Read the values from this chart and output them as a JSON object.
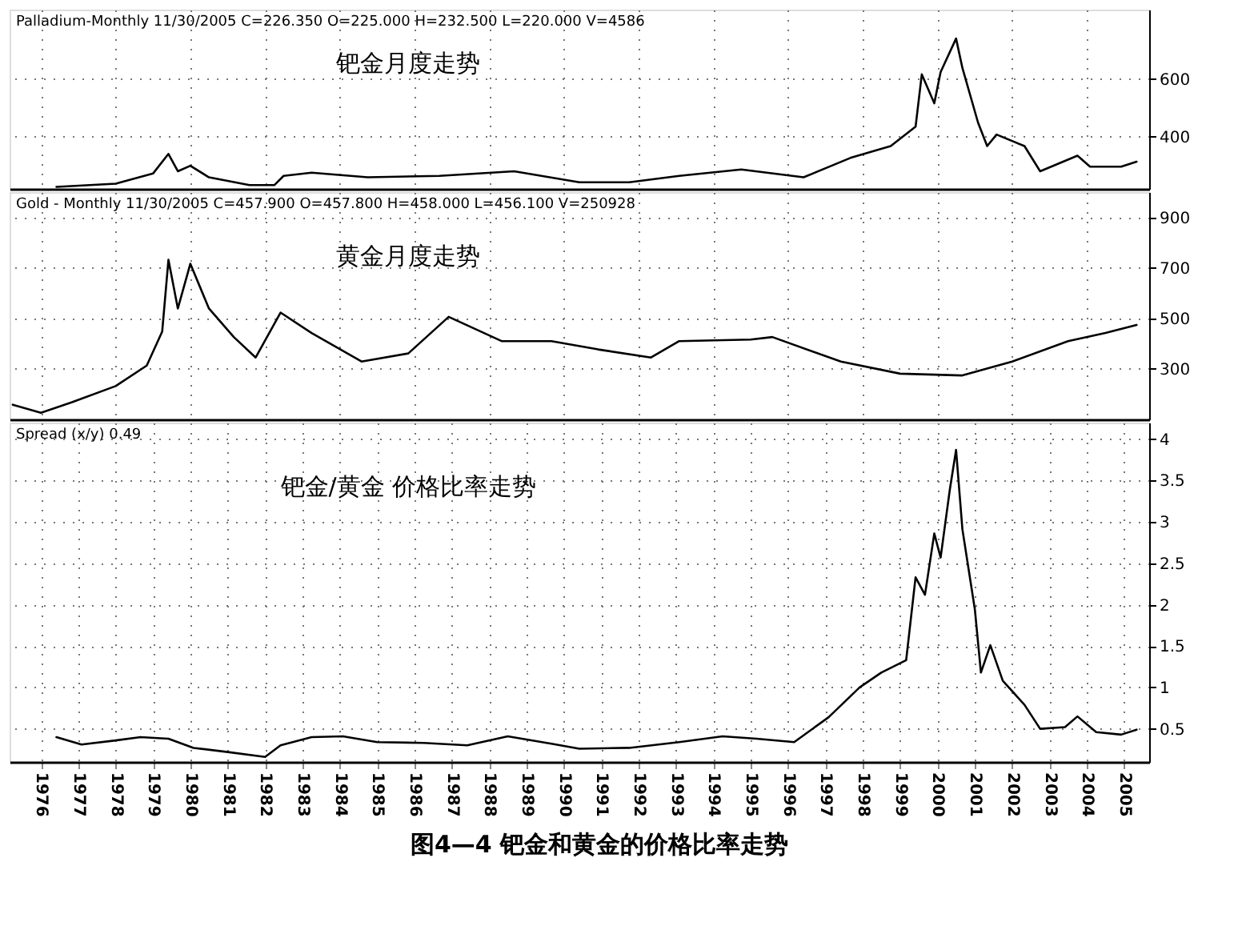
{
  "chart_data": [
    {
      "type": "line",
      "title": "钯金月度走势",
      "annotations": [
        "Palladium-Monthly  11/30/2005  C=226.350  O=225.000  H=232.500  L=220.000  V=4586"
      ],
      "xlim": [
        "1975-03",
        "2005-09"
      ],
      "ylim": [
        220,
        840
      ],
      "yticks": [
        400,
        600
      ],
      "grid": true,
      "tick_labels": "y",
      "marker": "none",
      "line_style": "solid",
      "series": [
        {
          "color": "#000000",
          "x": [
            "1976-06",
            "1978-01",
            "1979-01",
            "1979-06",
            "1979-09",
            "1980-01",
            "1980-07",
            "1981-08",
            "1982-04",
            "1982-07",
            "1983-04",
            "1984-10",
            "1986-09",
            "1988-09",
            "1990-06",
            "1991-10",
            "1993-02",
            "1994-10",
            "1996-06",
            "1997-09",
            "1998-10",
            "1999-06",
            "1999-08",
            "1999-12",
            "2000-02",
            "2000-07",
            "2000-09",
            "2001-02",
            "2001-05",
            "2001-08",
            "2002-05",
            "2002-10",
            "2003-10",
            "2004-02",
            "2004-12",
            "2005-05"
          ],
          "values": [
            227,
            238,
            273,
            341,
            281,
            300,
            260,
            233,
            233,
            265,
            276,
            260,
            265,
            281,
            243,
            243,
            265,
            287,
            260,
            327,
            368,
            435,
            616,
            516,
            624,
            740,
            638,
            449,
            368,
            408,
            368,
            281,
            335,
            297,
            297,
            314
          ]
        }
      ]
    },
    {
      "type": "line",
      "title": "黄金月度走势",
      "annotations": [
        "Gold - Monthly  11/30/2005  C=457.900  O=457.800  H=458.000  L=456.100  V=250928"
      ],
      "xlim": [
        "1975-03",
        "2005-09"
      ],
      "ylim": [
        100,
        1000
      ],
      "yticks": [
        300,
        500,
        700,
        900
      ],
      "grid": true,
      "tick_labels": "y",
      "marker": "none",
      "line_style": "solid",
      "series": [
        {
          "color": "#000000",
          "x": [
            "1975-04",
            "1976-01",
            "1976-11",
            "1978-01",
            "1978-11",
            "1979-04",
            "1979-06",
            "1979-09",
            "1980-01",
            "1980-07",
            "1981-03",
            "1981-10",
            "1982-06",
            "1983-04",
            "1984-08",
            "1985-11",
            "1986-12",
            "1988-05",
            "1989-09",
            "1990-12",
            "1992-05",
            "1993-02",
            "1995-01",
            "1995-08",
            "1997-06",
            "1999-01",
            "2000-09",
            "2002-01",
            "2003-07",
            "2004-07",
            "2005-05"
          ],
          "values": [
            158,
            126,
            168,
            232,
            313,
            448,
            732,
            539,
            716,
            539,
            426,
            345,
            523,
            442,
            329,
            361,
            506,
            410,
            410,
            377,
            345,
            410,
            416,
            426,
            329,
            281,
            274,
            329,
            410,
            442,
            474
          ]
        }
      ]
    },
    {
      "type": "line",
      "title": "钯金/黄金    价格比率走势",
      "annotations": [
        "Spread (x/y) 0.49",
        "图4—4    钯金和黄金的价格比率走势"
      ],
      "xlim": [
        "1975-03",
        "2005-09"
      ],
      "ylim": [
        0.1,
        4.2
      ],
      "yticks": [
        0.5,
        1,
        1.5,
        2,
        2.5,
        3,
        3.5,
        4
      ],
      "xticks": [
        "1976",
        "1977",
        "1978",
        "1979",
        "1980",
        "1981",
        "1982",
        "1983",
        "1984",
        "1985",
        "1986",
        "1987",
        "1988",
        "1989",
        "1990",
        "1991",
        "1992",
        "1993",
        "1994",
        "1995",
        "1996",
        "1997",
        "1998",
        "1999",
        "2000",
        "2001",
        "2002",
        "2003",
        "2004",
        "2005"
      ],
      "grid": true,
      "marker": "none",
      "line_style": "solid",
      "series": [
        {
          "color": "#000000",
          "x": [
            "1976-06",
            "1977-02",
            "1978-01",
            "1978-09",
            "1979-06",
            "1980-02",
            "1981-01",
            "1982-01",
            "1982-06",
            "1983-04",
            "1984-02",
            "1985-01",
            "1986-04",
            "1987-06",
            "1988-07",
            "1989-09",
            "1990-06",
            "1991-10",
            "1993-02",
            "1994-04",
            "1995-03",
            "1996-03",
            "1997-02",
            "1997-12",
            "1998-07",
            "1999-03",
            "1999-06",
            "1999-09",
            "1999-12",
            "2000-02",
            "2000-05",
            "2000-07",
            "2000-09",
            "2001-01",
            "2001-03",
            "2001-06",
            "2001-10",
            "2002-05",
            "2002-10",
            "2003-06",
            "2003-10",
            "2004-04",
            "2004-12",
            "2005-05"
          ],
          "values": [
            0.4,
            0.31,
            0.36,
            0.4,
            0.38,
            0.27,
            0.22,
            0.16,
            0.3,
            0.4,
            0.41,
            0.34,
            0.33,
            0.3,
            0.41,
            0.32,
            0.26,
            0.27,
            0.34,
            0.41,
            0.38,
            0.34,
            0.64,
            1.0,
            1.18,
            1.33,
            2.33,
            2.12,
            2.86,
            2.57,
            3.39,
            3.87,
            2.91,
            1.94,
            1.18,
            1.51,
            1.08,
            0.79,
            0.5,
            0.52,
            0.65,
            0.46,
            0.43,
            0.49
          ]
        }
      ]
    }
  ]
}
